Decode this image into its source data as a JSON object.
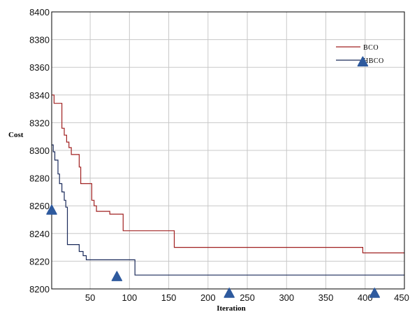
{
  "chart_data": {
    "type": "line",
    "title": "",
    "xlabel": "Iteration",
    "ylabel": "Cost",
    "xlim": [
      1,
      450
    ],
    "ylim": [
      8200,
      8400
    ],
    "x_ticks": [
      50,
      100,
      150,
      200,
      250,
      300,
      350,
      400,
      450
    ],
    "y_ticks": [
      8200,
      8220,
      8240,
      8260,
      8280,
      8300,
      8320,
      8340,
      8360,
      8380,
      8400
    ],
    "grid": true,
    "legend_position": "top-right",
    "series": [
      {
        "name": "BCO",
        "color": "#a02020",
        "step": true,
        "points": [
          [
            1,
            8340
          ],
          [
            4,
            8334
          ],
          [
            14,
            8316
          ],
          [
            17,
            8311
          ],
          [
            20,
            8306
          ],
          [
            23,
            8302
          ],
          [
            26,
            8297
          ],
          [
            36,
            8288
          ],
          [
            38,
            8276
          ],
          [
            52,
            8264
          ],
          [
            55,
            8260
          ],
          [
            58,
            8256
          ],
          [
            75,
            8254
          ],
          [
            92,
            8242
          ],
          [
            157,
            8230
          ],
          [
            397,
            8226
          ],
          [
            450,
            8226
          ]
        ]
      },
      {
        "name": "HBCO",
        "color": "#1a2a5a",
        "step": true,
        "points": [
          [
            1,
            8304
          ],
          [
            3,
            8299
          ],
          [
            5,
            8293
          ],
          [
            9,
            8283
          ],
          [
            11,
            8276
          ],
          [
            14,
            8270
          ],
          [
            17,
            8264
          ],
          [
            19,
            8259
          ],
          [
            21,
            8232
          ],
          [
            36,
            8227
          ],
          [
            41,
            8224
          ],
          [
            45,
            8221
          ],
          [
            107,
            8210
          ],
          [
            450,
            8210
          ]
        ]
      }
    ],
    "markers": [
      {
        "x": 1,
        "y": 8257
      },
      {
        "x": 84,
        "y": 8209
      },
      {
        "x": 227,
        "y": 8197
      },
      {
        "x": 397,
        "y": 8364
      },
      {
        "x": 412,
        "y": 8197
      }
    ],
    "marker_color": "#2e5a9e"
  }
}
